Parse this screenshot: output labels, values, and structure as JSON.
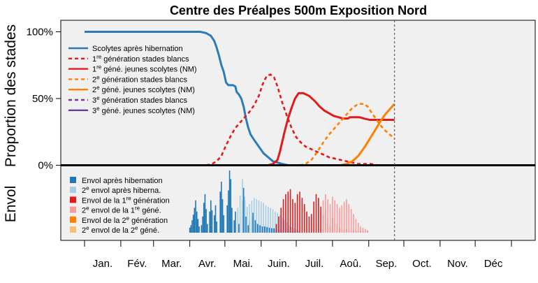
{
  "chart_data": {
    "type": "line",
    "title": "Centre des Préalpes 500m Exposition Nord",
    "ylabel_top": "Proportion des stades",
    "ylabel_bottom": "Envol",
    "yticks": [
      "100%",
      "50%",
      "0%"
    ],
    "ytick_values": [
      100,
      50,
      0
    ],
    "ylim": [
      0,
      108
    ],
    "xlim": [
      1,
      366
    ],
    "months": [
      "Jan.",
      "Fév.",
      "Mar.",
      "Avr.",
      "Mai.",
      "Juin.",
      "Juil.",
      "Aoû.",
      "Sep.",
      "Oct.",
      "Nov.",
      "Déc"
    ],
    "month_starts": [
      1,
      32,
      60,
      91,
      121,
      152,
      182,
      213,
      244,
      274,
      305,
      335,
      366
    ],
    "current_day": 266,
    "grid": false,
    "legend_top": [
      {
        "key": "s0",
        "parts": [
          {
            "t": "Scolytes après hibernation"
          }
        ],
        "color": "#2c7bb6",
        "dash": "solid"
      },
      {
        "key": "s1",
        "parts": [
          {
            "t": "1"
          },
          {
            "t": "re",
            "sup": true
          },
          {
            "t": " génération stades blancs"
          }
        ],
        "color": "#e31a1c",
        "dash": "dotted"
      },
      {
        "key": "s2",
        "parts": [
          {
            "t": "1"
          },
          {
            "t": "re",
            "sup": true
          },
          {
            "t": " géné. jeunes scolytes (NM)"
          }
        ],
        "color": "#e31a1c",
        "dash": "solid"
      },
      {
        "key": "s3",
        "parts": [
          {
            "t": "2"
          },
          {
            "t": "e",
            "sup": true
          },
          {
            "t": " génération stades blancs"
          }
        ],
        "color": "#ff7f00",
        "dash": "dotted"
      },
      {
        "key": "s4",
        "parts": [
          {
            "t": "2"
          },
          {
            "t": "e",
            "sup": true
          },
          {
            "t": " géné. jeunes scolytes (NM)"
          }
        ],
        "color": "#ff7f00",
        "dash": "solid"
      },
      {
        "key": "s5",
        "parts": [
          {
            "t": "3"
          },
          {
            "t": "e",
            "sup": true
          },
          {
            "t": " génération stades blancs"
          }
        ],
        "color": "#6a3d9a",
        "dash": "dotted"
      },
      {
        "key": "s6",
        "parts": [
          {
            "t": "3"
          },
          {
            "t": "e",
            "sup": true
          },
          {
            "t": " géné. jeunes scolytes (NM)"
          }
        ],
        "color": "#6a3d9a",
        "dash": "solid"
      }
    ],
    "legend_bottom": [
      {
        "key": "b0",
        "parts": [
          {
            "t": "Envol après hibernation"
          }
        ],
        "color": "#1f78b4"
      },
      {
        "key": "b1",
        "parts": [
          {
            "t": "2"
          },
          {
            "t": "e",
            "sup": true
          },
          {
            "t": " envol après hiberna."
          }
        ],
        "color": "#a6cee3"
      },
      {
        "key": "b2",
        "parts": [
          {
            "t": "Envol de la 1"
          },
          {
            "t": "re",
            "sup": true
          },
          {
            "t": " génération"
          }
        ],
        "color": "#e31a1c"
      },
      {
        "key": "b3",
        "parts": [
          {
            "t": "2"
          },
          {
            "t": "e",
            "sup": true
          },
          {
            "t": " envol de la 1"
          },
          {
            "t": "re",
            "sup": true
          },
          {
            "t": " géné."
          }
        ],
        "color": "#fb9a99"
      },
      {
        "key": "b4",
        "parts": [
          {
            "t": "Envol de la 2"
          },
          {
            "t": "e",
            "sup": true
          },
          {
            "t": " génération"
          }
        ],
        "color": "#ff7f00"
      },
      {
        "key": "b5",
        "parts": [
          {
            "t": "2"
          },
          {
            "t": "e",
            "sup": true
          },
          {
            "t": " envol de la 2"
          },
          {
            "t": "e",
            "sup": true
          },
          {
            "t": " géné."
          }
        ],
        "color": "#fdbf6f"
      }
    ],
    "series": [
      {
        "name": "Scolytes après hibernation",
        "color": "#2c7bb6",
        "dash": "solid",
        "width": 3,
        "x": [
          1,
          5,
          10,
          20,
          30,
          40,
          50,
          60,
          70,
          80,
          90,
          100,
          105,
          109,
          112,
          114,
          116,
          118,
          120,
          122,
          124,
          126,
          128,
          130,
          131,
          133,
          135,
          137,
          139,
          141,
          143,
          146,
          150,
          154,
          158,
          162,
          166,
          170,
          175,
          180
        ],
        "y": [
          100,
          100,
          100,
          100,
          100,
          100,
          100,
          100,
          100,
          100,
          100,
          100,
          99,
          97,
          93,
          88,
          82,
          75,
          70,
          62,
          60,
          60,
          60,
          59,
          55,
          53,
          50,
          44,
          35,
          28,
          23,
          19,
          14,
          9,
          6,
          3,
          2,
          1,
          0,
          0
        ]
      },
      {
        "name": "1re génération stades blancs",
        "color": "#e31a1c",
        "dash": "dotted",
        "width": 2.6,
        "x": [
          105,
          110,
          114,
          118,
          122,
          126,
          130,
          134,
          138,
          142,
          146,
          150,
          153,
          155,
          157,
          160,
          163,
          166,
          170,
          174,
          178,
          182,
          186,
          190,
          195,
          200,
          205,
          210,
          215,
          220,
          225,
          230,
          235,
          240,
          246,
          252,
          260
        ],
        "y": [
          0,
          1,
          3,
          7,
          15,
          22,
          28,
          32,
          36,
          40,
          45,
          52,
          60,
          64,
          67,
          68,
          66,
          59,
          47,
          37,
          28,
          21,
          17,
          14,
          12,
          10,
          8,
          6,
          5,
          4,
          3,
          2,
          1,
          1,
          1,
          0,
          0
        ]
      },
      {
        "name": "1re géné. jeunes scolytes (NM)",
        "color": "#e31a1c",
        "dash": "solid",
        "width": 3,
        "x": [
          150,
          154,
          158,
          162,
          166,
          168,
          172,
          175,
          178,
          181,
          184,
          188,
          193,
          198,
          202,
          206,
          210,
          214,
          218,
          222,
          226,
          228,
          232,
          236,
          240,
          245,
          250,
          255,
          260,
          266
        ],
        "y": [
          0,
          0,
          0,
          1,
          4,
          10,
          25,
          35,
          43,
          50,
          54,
          54,
          52,
          48,
          44,
          41,
          39,
          37,
          36,
          35,
          35,
          36,
          36,
          36,
          35,
          34,
          34,
          34,
          34,
          34
        ]
      },
      {
        "name": "2e génération stades blancs",
        "color": "#ff7f00",
        "dash": "dotted",
        "width": 2.6,
        "x": [
          185,
          190,
          195,
          200,
          205,
          210,
          215,
          220,
          225,
          230,
          235,
          240,
          243,
          246,
          250,
          254,
          258,
          262,
          266
        ],
        "y": [
          0,
          1,
          4,
          10,
          17,
          23,
          28,
          33,
          38,
          43,
          46,
          46,
          44,
          40,
          35,
          30,
          26,
          23,
          20
        ]
      },
      {
        "name": "2e géné. jeunes scolytes (NM)",
        "color": "#ff7f00",
        "dash": "solid",
        "width": 3,
        "x": [
          220,
          225,
          230,
          235,
          240,
          245,
          250,
          254,
          258,
          262,
          266
        ],
        "y": [
          0,
          1,
          3,
          7,
          13,
          20,
          27,
          33,
          38,
          42,
          46
        ]
      }
    ],
    "flight_groups": [
      {
        "key": "b0",
        "color": "#1f78b4",
        "bars": [
          [
            91,
            8
          ],
          [
            92,
            12
          ],
          [
            93,
            20
          ],
          [
            94,
            29
          ],
          [
            95,
            40
          ],
          [
            96,
            52
          ],
          [
            97,
            34
          ],
          [
            98,
            22
          ],
          [
            99,
            10
          ],
          [
            101,
            12
          ],
          [
            102,
            26
          ],
          [
            103,
            48
          ],
          [
            104,
            62
          ],
          [
            105,
            38
          ],
          [
            106,
            14
          ],
          [
            108,
            34
          ],
          [
            109,
            52
          ],
          [
            110,
            36
          ],
          [
            112,
            28
          ],
          [
            113,
            44
          ],
          [
            114,
            18
          ],
          [
            117,
            66
          ],
          [
            118,
            82
          ],
          [
            119,
            54
          ],
          [
            120,
            28
          ],
          [
            123,
            44
          ],
          [
            124,
            68
          ],
          [
            125,
            100
          ],
          [
            126,
            86
          ],
          [
            127,
            40
          ],
          [
            129,
            20
          ],
          [
            130,
            34
          ],
          [
            132,
            26
          ],
          [
            133,
            14
          ],
          [
            136,
            52
          ],
          [
            137,
            72
          ],
          [
            138,
            52
          ],
          [
            139,
            26
          ],
          [
            141,
            12
          ],
          [
            142,
            18
          ],
          [
            144,
            24
          ],
          [
            145,
            32
          ],
          [
            146,
            28
          ],
          [
            147,
            20
          ],
          [
            148,
            16
          ],
          [
            149,
            14
          ],
          [
            150,
            12
          ],
          [
            151,
            12
          ],
          [
            152,
            12
          ],
          [
            153,
            10
          ],
          [
            154,
            10
          ],
          [
            155,
            10
          ],
          [
            156,
            10
          ],
          [
            157,
            9
          ],
          [
            158,
            8
          ],
          [
            159,
            8
          ],
          [
            160,
            8
          ],
          [
            161,
            7
          ],
          [
            162,
            7
          ],
          [
            163,
            7
          ],
          [
            164,
            6
          ],
          [
            165,
            6
          ],
          [
            166,
            6
          ],
          [
            167,
            5
          ],
          [
            168,
            5
          ],
          [
            169,
            5
          ],
          [
            170,
            4
          ],
          [
            172,
            4
          ],
          [
            174,
            3
          ],
          [
            176,
            3
          ],
          [
            178,
            2
          ],
          [
            180,
            2
          ]
        ]
      },
      {
        "key": "b1",
        "color": "#a6cee3",
        "bars": [
          [
            132,
            40
          ],
          [
            134,
            60
          ],
          [
            136,
            86
          ],
          [
            138,
            58
          ],
          [
            140,
            42
          ],
          [
            142,
            46
          ],
          [
            144,
            52
          ],
          [
            146,
            56
          ],
          [
            148,
            54
          ],
          [
            150,
            52
          ],
          [
            152,
            50
          ],
          [
            154,
            48
          ],
          [
            156,
            44
          ],
          [
            158,
            42
          ],
          [
            160,
            40
          ],
          [
            162,
            38
          ],
          [
            164,
            34
          ],
          [
            166,
            32
          ],
          [
            168,
            28
          ],
          [
            170,
            24
          ],
          [
            172,
            20
          ],
          [
            174,
            16
          ],
          [
            176,
            12
          ],
          [
            178,
            9
          ],
          [
            180,
            7
          ],
          [
            182,
            5
          ],
          [
            184,
            3
          ]
        ]
      },
      {
        "key": "b2",
        "color": "#e31a1c",
        "bars": [
          [
            165,
            14
          ],
          [
            167,
            26
          ],
          [
            169,
            40
          ],
          [
            171,
            54
          ],
          [
            173,
            62
          ],
          [
            175,
            66
          ],
          [
            177,
            70
          ],
          [
            179,
            54
          ],
          [
            181,
            48
          ],
          [
            183,
            62
          ],
          [
            185,
            66
          ],
          [
            187,
            56
          ],
          [
            189,
            46
          ],
          [
            191,
            34
          ],
          [
            193,
            26
          ],
          [
            195,
            30
          ],
          [
            197,
            50
          ],
          [
            199,
            62
          ],
          [
            201,
            56
          ],
          [
            203,
            42
          ],
          [
            205,
            28
          ],
          [
            207,
            36
          ],
          [
            209,
            22
          ],
          [
            211,
            12
          ],
          [
            213,
            24
          ],
          [
            215,
            18
          ],
          [
            217,
            14
          ],
          [
            219,
            8
          ],
          [
            221,
            6
          ],
          [
            223,
            5
          ],
          [
            225,
            4
          ],
          [
            227,
            3
          ],
          [
            229,
            3
          ],
          [
            231,
            3
          ],
          [
            233,
            3
          ],
          [
            235,
            3
          ],
          [
            237,
            3
          ],
          [
            239,
            3
          ],
          [
            241,
            3
          ],
          [
            243,
            3
          ]
        ]
      },
      {
        "key": "b3",
        "color": "#fb9a99",
        "bars": [
          [
            205,
            52
          ],
          [
            207,
            62
          ],
          [
            209,
            54
          ],
          [
            211,
            46
          ],
          [
            213,
            58
          ],
          [
            215,
            52
          ],
          [
            217,
            46
          ],
          [
            219,
            40
          ],
          [
            221,
            44
          ],
          [
            223,
            50
          ],
          [
            225,
            54
          ],
          [
            227,
            46
          ],
          [
            229,
            38
          ],
          [
            231,
            30
          ],
          [
            233,
            22
          ],
          [
            235,
            16
          ],
          [
            237,
            10
          ],
          [
            239,
            8
          ],
          [
            241,
            6
          ],
          [
            243,
            4
          ]
        ]
      },
      {
        "key": "b4",
        "color": "#ff7f00",
        "bars": []
      },
      {
        "key": "b5",
        "color": "#fdbf6f",
        "bars": []
      }
    ],
    "flight_max": 100
  }
}
